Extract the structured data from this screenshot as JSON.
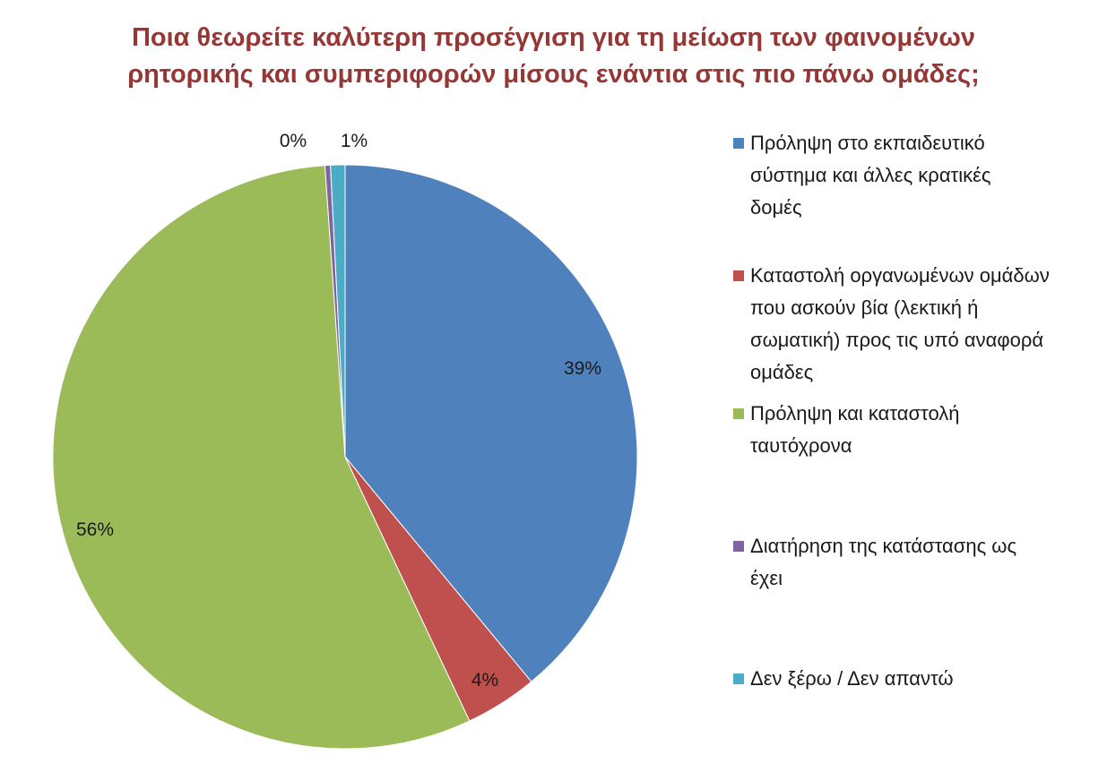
{
  "chart_data": {
    "type": "pie",
    "title_lines": [
      "Ποια θεωρείτε καλύτερη προσέγγιση για τη μείωση των φαινομένων",
      "ρητορικής και συμπεριφορών μίσους ενάντια στις πιο πάνω ομάδες;"
    ],
    "slices": [
      {
        "name": "Πρόληψη στο εκπαιδευτικό σύστημα και άλλες κρατικές δομές",
        "value": 39,
        "label": "39%",
        "color": "#4f81bd"
      },
      {
        "name": "Καταστολή οργανωμένων ομάδων που ασκούν βία (λεκτική ή σωματική) προς τις υπό αναφορά ομάδες",
        "value": 4,
        "label": "4%",
        "color": "#c0504d"
      },
      {
        "name": "Πρόληψη και καταστολή ταυτόχρονα",
        "value": 55.9,
        "label": "56%",
        "color": "#9bbb59"
      },
      {
        "name": "Διατήρηση της κατάστασης ως έχει",
        "value": 0.3,
        "label": "0%",
        "color": "#8064a2"
      },
      {
        "name": "Δεν ξέρω / Δεν απαντώ",
        "value": 0.8,
        "label": "1%",
        "color": "#4bacc6"
      }
    ],
    "legend": {
      "position": "right",
      "items": [
        {
          "lines": [
            "Πρόληψη στο εκπαιδευτικό",
            "σύστημα και άλλες κρατικές",
            "δομές"
          ],
          "color": "#4f81bd"
        },
        {
          "lines": [
            "Καταστολή οργανωμένων ομάδων",
            "που ασκούν βία (λεκτική ή",
            "σωματική) προς τις υπό αναφορά",
            "ομάδες"
          ],
          "color": "#c0504d"
        },
        {
          "lines": [
            "Πρόληψη και καταστολή",
            "ταυτόχρονα"
          ],
          "color": "#9bbb59"
        },
        {
          "lines": [
            "Διατήρηση της κατάστασης ως",
            "έχει"
          ],
          "color": "#8064a2"
        },
        {
          "lines": [
            "Δεν ξέρω / Δεν απαντώ"
          ],
          "color": "#4bacc6"
        }
      ]
    }
  }
}
